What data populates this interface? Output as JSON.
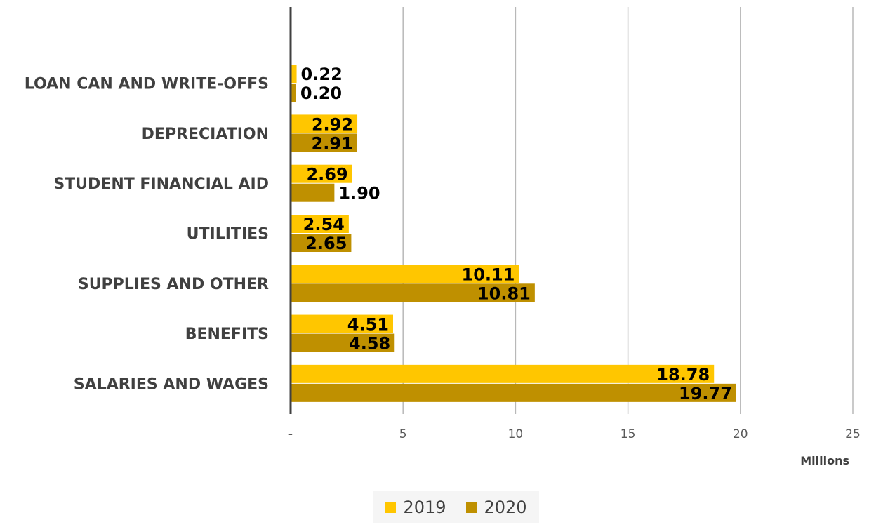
{
  "chart_data": {
    "type": "bar",
    "orientation": "horizontal",
    "categories": [
      "LOAN CAN AND WRITE-OFFS",
      "DEPRECIATION",
      "STUDENT FINANCIAL AID",
      "UTILITIES",
      "SUPPLIES AND OTHER",
      "BENEFITS",
      "SALARIES AND WAGES"
    ],
    "series": [
      {
        "name": "2019",
        "color": "#FFC600",
        "values": [
          0.22,
          2.92,
          2.69,
          2.54,
          10.11,
          4.51,
          18.78
        ],
        "labels": [
          "0.22",
          "2.92",
          "2.69",
          "2.54",
          "10.11",
          "4.51",
          "18.78"
        ]
      },
      {
        "name": "2020",
        "color": "#BF9000",
        "values": [
          0.2,
          2.91,
          1.9,
          2.65,
          10.81,
          4.58,
          19.77
        ],
        "labels": [
          "0.20",
          "2.91",
          "1.90",
          "2.65",
          "10.81",
          "4.58",
          "19.77"
        ]
      }
    ],
    "xlim": [
      0,
      25
    ],
    "ticks": [
      0,
      5,
      10,
      15,
      20,
      25
    ],
    "tick_labels": [
      "-",
      "5",
      "10",
      "15",
      "20",
      "25"
    ],
    "xunit": "Millions",
    "grid": true,
    "legend_position": "bottom"
  }
}
